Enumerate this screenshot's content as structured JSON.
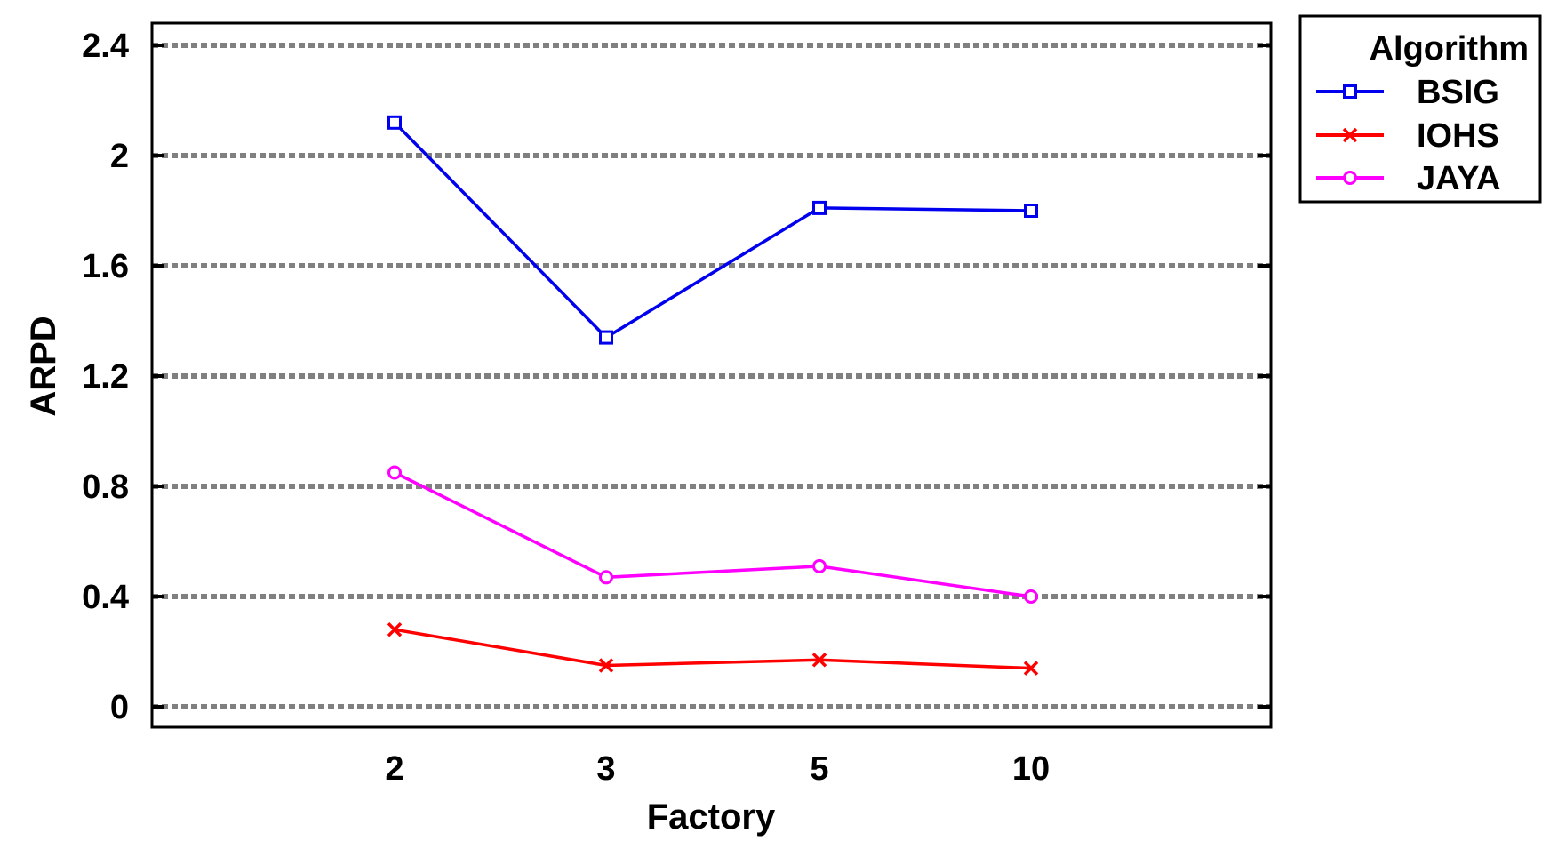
{
  "chart_data": {
    "type": "line",
    "categories": [
      "2",
      "3",
      "5",
      "10"
    ],
    "xlabel": "Factory",
    "ylabel": "ARPD",
    "ylim": [
      0,
      2.4
    ],
    "yticks": [
      "0",
      "0.4",
      "0.8",
      "1.2",
      "1.6",
      "2",
      "2.4"
    ],
    "grid": true,
    "legend": {
      "title": "Algorithm",
      "placement": "outside-top-right"
    },
    "series": [
      {
        "name": "BSIG",
        "marker": "square",
        "color": "#0000ee",
        "values": [
          2.12,
          1.34,
          1.81,
          1.8
        ]
      },
      {
        "name": "IOHS",
        "marker": "x",
        "color": "#ff0000",
        "values": [
          0.28,
          0.15,
          0.17,
          0.14
        ]
      },
      {
        "name": "JAYA",
        "marker": "circle",
        "color": "#ff00ff",
        "values": [
          0.85,
          0.47,
          0.51,
          0.4
        ]
      }
    ]
  }
}
